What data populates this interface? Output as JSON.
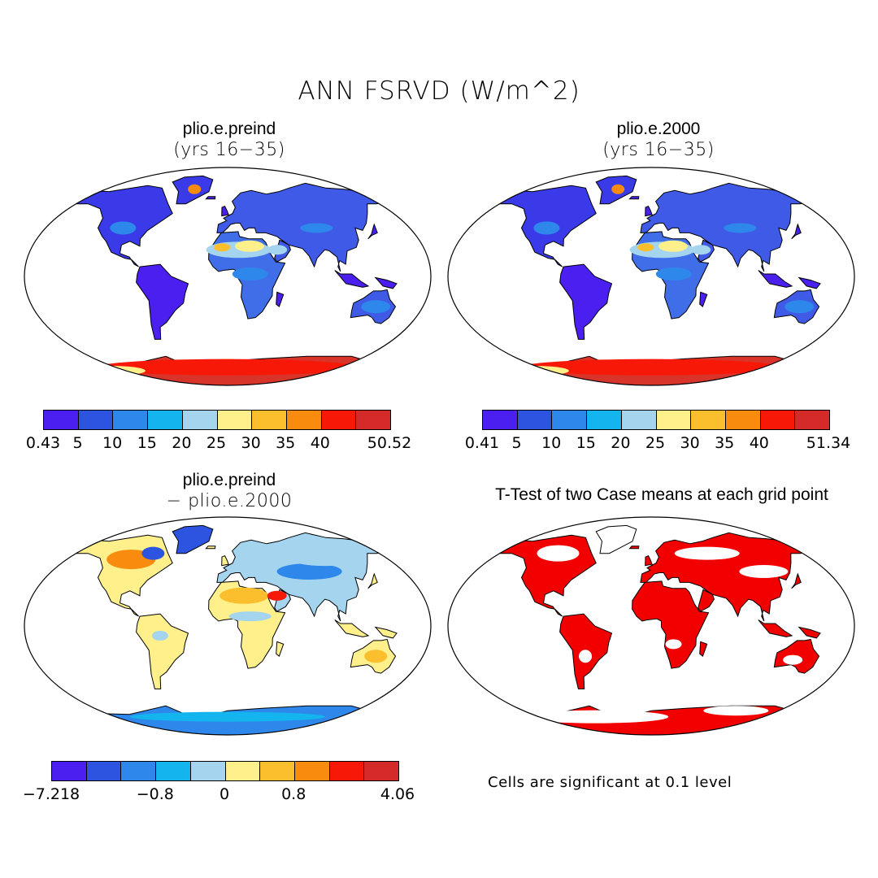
{
  "figure": {
    "title": "ANN FSRVD (W/m^2)"
  },
  "panels": [
    {
      "title": "plio.e.preind",
      "subtitle": "(yrs 16−35)",
      "colorbar": {
        "ticks": [
          "0.43",
          "5",
          "10",
          "15",
          "20",
          "25",
          "30",
          "35",
          "40",
          "50.52"
        ],
        "colors": [
          "#4a1ff0",
          "#2c54e0",
          "#2e87ea",
          "#14b4ef",
          "#a4d4ee",
          "#fff08c",
          "#fbbe2d",
          "#f98b0f",
          "#f71808",
          "#d42a2a"
        ]
      }
    },
    {
      "title": "plio.e.2000",
      "subtitle": "(yrs 16−35)",
      "colorbar": {
        "ticks": [
          "0.41",
          "5",
          "10",
          "15",
          "20",
          "25",
          "30",
          "35",
          "40",
          "51.34"
        ],
        "colors": [
          "#4a1ff0",
          "#2c54e0",
          "#2e87ea",
          "#14b4ef",
          "#a4d4ee",
          "#fff08c",
          "#fbbe2d",
          "#f98b0f",
          "#f71808",
          "#d42a2a"
        ]
      }
    },
    {
      "title": "plio.e.preind",
      "subtitle": "− plio.e.2000",
      "colorbar": {
        "ticks": [
          "−7.218",
          "−0.8",
          "0",
          "0.8",
          "4.06"
        ],
        "colors": [
          "#4a1ff0",
          "#2c54e0",
          "#2e87ea",
          "#14b4ef",
          "#a4d4ee",
          "#fff08c",
          "#fbbe2d",
          "#f98b0f",
          "#f71808",
          "#d42a2a"
        ]
      }
    },
    {
      "title": "T-Test of two Case means at each grid point",
      "note": "Cells are significant at 0.1 level",
      "significance_color": "#f20000"
    }
  ]
}
